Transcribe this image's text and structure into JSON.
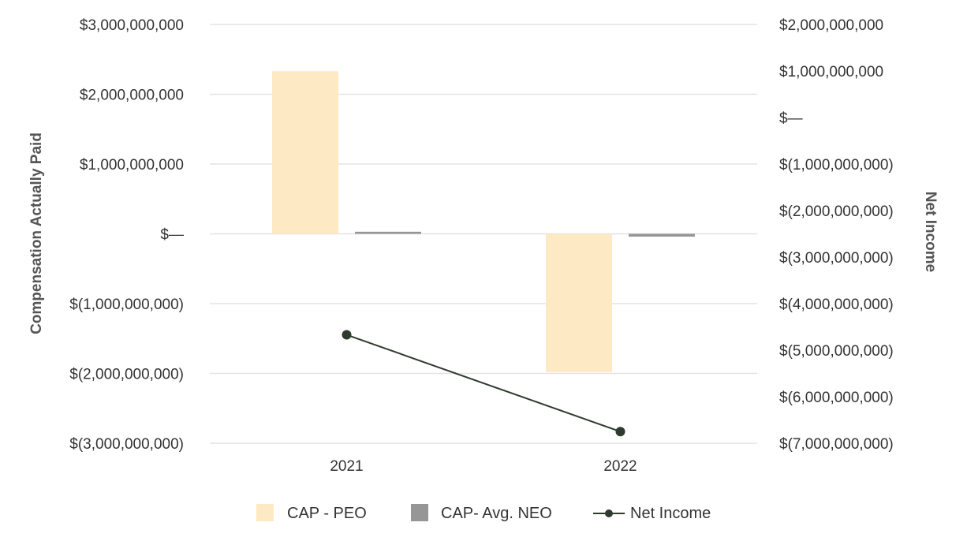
{
  "chart_data": {
    "type": "bar",
    "categories": [
      "2021",
      "2022"
    ],
    "left_axis": {
      "label": "Compensation Actually Paid",
      "ylim": [
        -3000000000,
        3000000000
      ],
      "ticks": [
        3000000000,
        2000000000,
        1000000000,
        0,
        -1000000000,
        -2000000000,
        -3000000000
      ],
      "tick_labels": [
        "$3,000,000,000",
        "$2,000,000,000",
        "$1,000,000,000",
        "$—",
        "$(1,000,000,000)",
        "$(2,000,000,000)",
        "$(3,000,000,000)"
      ]
    },
    "right_axis": {
      "label": "Net Income",
      "ylim": [
        -7000000000,
        2000000000
      ],
      "ticks": [
        2000000000,
        1000000000,
        0,
        -1000000000,
        -2000000000,
        -3000000000,
        -4000000000,
        -5000000000,
        -6000000000,
        -7000000000
      ],
      "tick_labels": [
        "$2,000,000,000",
        "$1,000,000,000",
        "$—",
        "$(1,000,000,000)",
        "$(2,000,000,000)",
        "$(3,000,000,000)",
        "$(4,000,000,000)",
        "$(5,000,000,000)",
        "$(6,000,000,000)",
        "$(7,000,000,000)"
      ]
    },
    "series": [
      {
        "name": "CAP - PEO",
        "type": "bar",
        "axis": "left",
        "color": "#fde9c3",
        "values": [
          2330000000,
          -1980000000
        ]
      },
      {
        "name": "CAP- Avg. NEO",
        "type": "bar",
        "axis": "left",
        "color": "#969696",
        "values": [
          30000000,
          -40000000
        ]
      },
      {
        "name": "Net Income",
        "type": "line",
        "axis": "right",
        "color": "#2e3b2e",
        "values": [
          -4670000000,
          -6750000000
        ]
      }
    ],
    "grid": true,
    "legend": "bottom"
  }
}
